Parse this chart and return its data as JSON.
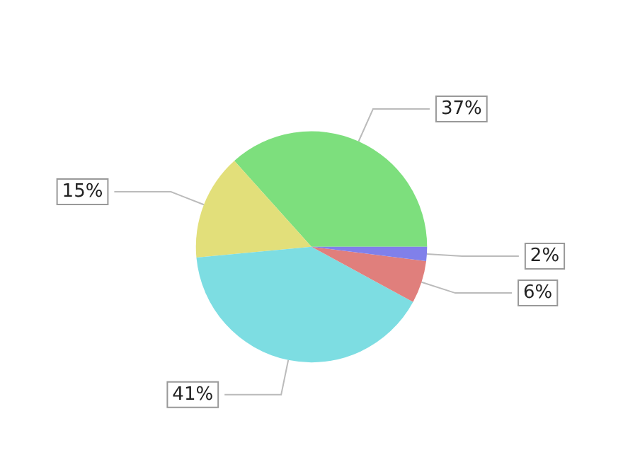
{
  "chart_data": {
    "type": "pie",
    "categories": [
      null,
      null,
      null,
      null,
      null
    ],
    "values": [
      37,
      15,
      41,
      6,
      2
    ],
    "value_labels": [
      "37%",
      "15%",
      "41%",
      "6%",
      "2%"
    ],
    "colors": [
      "#7ddf7d",
      "#e2df7a",
      "#7ddde2",
      "#e07f7c",
      "#8080ea"
    ]
  }
}
